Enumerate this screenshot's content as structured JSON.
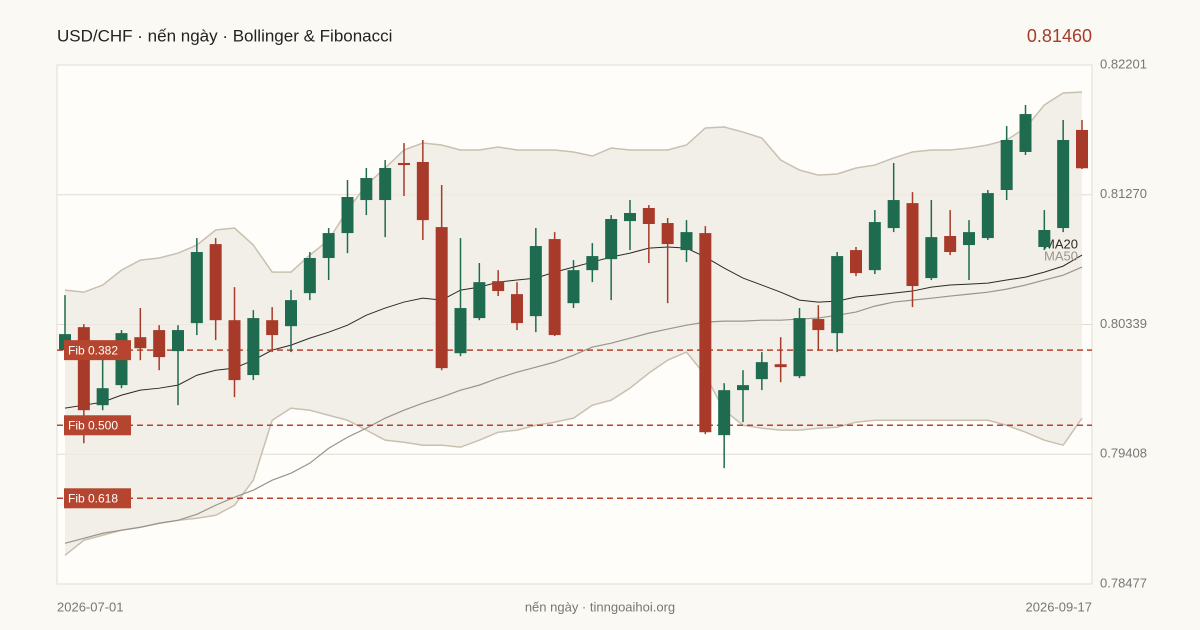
{
  "chart_data": {
    "type": "candlestick",
    "title": "USD/CHF · nến ngày · Bollinger & Fibonacci",
    "last_price": "0.81460",
    "footer": "nến ngày · tinngoaihoi.org",
    "up_color": "#1e6b50",
    "down_color": "#a83a2a",
    "categories": [
      "2026-07-01",
      null,
      null,
      null,
      null,
      null,
      null,
      null,
      null,
      null,
      null,
      null,
      null,
      null,
      null,
      null,
      null,
      null,
      null,
      null,
      null,
      null,
      null,
      null,
      null,
      null,
      null,
      null,
      null,
      null,
      null,
      null,
      null,
      null,
      null,
      null,
      null,
      null,
      null,
      null,
      null,
      null,
      null,
      null,
      null,
      null,
      null,
      null,
      null,
      null,
      null,
      null,
      null,
      null,
      "2026-09-17"
    ],
    "open": [
      0.80155,
      0.8032,
      0.7976,
      0.79904,
      0.80248,
      0.80299,
      0.80148,
      0.80349,
      0.80916,
      0.8037,
      0.79976,
      0.8037,
      0.80327,
      0.80564,
      0.80816,
      0.80995,
      0.81232,
      0.81232,
      0.81498,
      0.81505,
      0.81038,
      0.80133,
      0.80385,
      0.8065,
      0.80557,
      0.80399,
      0.80952,
      0.80492,
      0.80729,
      0.80808,
      0.81081,
      0.81175,
      0.81067,
      0.80873,
      0.80995,
      0.79545,
      0.79868,
      0.79947,
      0.80054,
      0.79968,
      0.80378,
      0.80277,
      0.80873,
      0.80729,
      0.81031,
      0.8121,
      0.80672,
      0.80974,
      0.80909,
      0.80959,
      0.81304,
      0.81577,
      0.80895,
      0.81031,
      0.81735
    ],
    "high": [
      0.8055,
      0.80342,
      0.80098,
      0.80299,
      0.80457,
      0.80334,
      0.80334,
      0.80959,
      0.80959,
      0.80607,
      0.80442,
      0.80464,
      0.80586,
      0.80859,
      0.81031,
      0.81376,
      0.81462,
      0.81519,
      0.81641,
      0.81663,
      0.8134,
      0.80959,
      0.8078,
      0.80729,
      0.80643,
      0.81031,
      0.81002,
      0.80801,
      0.80923,
      0.81124,
      0.81232,
      0.81196,
      0.81103,
      0.81088,
      0.81045,
      0.79918,
      0.80011,
      0.80141,
      0.80248,
      0.80457,
      0.80478,
      0.80859,
      0.80895,
      0.8116,
      0.81498,
      0.81289,
      0.81232,
      0.8116,
      0.81088,
      0.81304,
      0.81763,
      0.81914,
      0.8116,
      0.81806,
      0.81806
    ],
    "low": [
      0.80098,
      0.79487,
      0.79724,
      0.79882,
      0.80083,
      0.80011,
      0.7976,
      0.80263,
      0.80227,
      0.79818,
      0.7994,
      0.80141,
      0.80141,
      0.80514,
      0.80658,
      0.80851,
      0.81124,
      0.80966,
      0.81261,
      0.80945,
      0.80011,
      0.80112,
      0.8037,
      0.80543,
      0.80299,
      0.80284,
      0.80256,
      0.80457,
      0.80643,
      0.80514,
      0.80873,
      0.8078,
      0.80492,
      0.80787,
      0.79552,
      0.79308,
      0.79638,
      0.79868,
      0.79925,
      0.79954,
      0.80155,
      0.80141,
      0.80686,
      0.80701,
      0.81002,
      0.80464,
      0.80658,
      0.80837,
      0.80658,
      0.80945,
      0.81232,
      0.81555,
      0.80873,
      0.81002,
      0.81455
    ],
    "close": [
      0.8027,
      0.79724,
      0.79882,
      0.80277,
      0.80169,
      0.80105,
      0.80299,
      0.80859,
      0.8037,
      0.7994,
      0.80385,
      0.80263,
      0.80514,
      0.80816,
      0.80995,
      0.81254,
      0.8139,
      0.81462,
      0.81483,
      0.81088,
      0.80026,
      0.80457,
      0.80643,
      0.80579,
      0.80349,
      0.80902,
      0.80263,
      0.80729,
      0.8083,
      0.81096,
      0.81139,
      0.8106,
      0.80916,
      0.81002,
      0.79566,
      0.79868,
      0.79904,
      0.80069,
      0.80033,
      0.80385,
      0.80299,
      0.8083,
      0.80708,
      0.81074,
      0.81232,
      0.80615,
      0.80966,
      0.80859,
      0.81002,
      0.81282,
      0.81663,
      0.81849,
      0.81017,
      0.81663,
      0.8146
    ],
    "bands": {
      "color": "#efebe3",
      "line_color": "#c9c0b0",
      "upper": [
        0.80586,
        0.80571,
        0.80622,
        0.80729,
        0.80801,
        0.80816,
        0.80851,
        0.80909,
        0.81017,
        0.81031,
        0.80909,
        0.80715,
        0.80715,
        0.80837,
        0.80945,
        0.8116,
        0.8134,
        0.81462,
        0.81591,
        0.81641,
        0.81627,
        0.81591,
        0.81591,
        0.81613,
        0.81591,
        0.81591,
        0.81591,
        0.81577,
        0.81548,
        0.81605,
        0.81591,
        0.81591,
        0.81591,
        0.81627,
        0.81749,
        0.81756,
        0.8172,
        0.81677,
        0.81519,
        0.81447,
        0.81411,
        0.81419,
        0.81462,
        0.81483,
        0.81534,
        0.81577,
        0.81591,
        0.81591,
        0.81605,
        0.81627,
        0.81663,
        0.81749,
        0.81914,
        0.82,
        0.82007
      ],
      "lower": [
        0.78683,
        0.78791,
        0.78827,
        0.78863,
        0.78884,
        0.78913,
        0.78934,
        0.78949,
        0.7897,
        0.79042,
        0.79222,
        0.79652,
        0.79739,
        0.79724,
        0.79688,
        0.79652,
        0.79581,
        0.79509,
        0.79494,
        0.79473,
        0.79473,
        0.79459,
        0.79509,
        0.79566,
        0.79581,
        0.79616,
        0.79638,
        0.79667,
        0.7976,
        0.79796,
        0.79882,
        0.7999,
        0.80083,
        0.80141,
        0.79975,
        0.79724,
        0.79616,
        0.79595,
        0.79581,
        0.79581,
        0.79595,
        0.79602,
        0.79638,
        0.79652,
        0.79652,
        0.79652,
        0.79652,
        0.79652,
        0.79652,
        0.79652,
        0.79616,
        0.79566,
        0.79509,
        0.79473,
        0.79667
      ]
    },
    "series": [
      {
        "name": "MA20",
        "color": "#2d2a26",
        "values": [
          0.79739,
          0.7976,
          0.79782,
          0.79832,
          0.79868,
          0.79882,
          0.79904,
          0.79975,
          0.80011,
          0.80026,
          0.80083,
          0.80155,
          0.80191,
          0.80241,
          0.80284,
          0.80334,
          0.80406,
          0.80457,
          0.805,
          0.80528,
          0.80514,
          0.80586,
          0.80607,
          0.80643,
          0.80658,
          0.80672,
          0.80715,
          0.80751,
          0.80787,
          0.80823,
          0.80851,
          0.80887,
          0.80895,
          0.80887,
          0.80823,
          0.80744,
          0.80672,
          0.80622,
          0.80571,
          0.80514,
          0.805,
          0.80507,
          0.80536,
          0.8055,
          0.80564,
          0.80579,
          0.80607,
          0.80622,
          0.80629,
          0.80636,
          0.80658,
          0.80679,
          0.80715,
          0.80758,
          0.80837
        ]
      },
      {
        "name": "MA50",
        "color": "#9a948a",
        "values": [
          0.78769,
          0.78805,
          0.78841,
          0.78863,
          0.78884,
          0.78913,
          0.78934,
          0.78977,
          0.79042,
          0.791,
          0.7915,
          0.79222,
          0.79272,
          0.79344,
          0.79451,
          0.7953,
          0.79595,
          0.79667,
          0.79724,
          0.79774,
          0.79818,
          0.79868,
          0.79904,
          0.79954,
          0.79997,
          0.80033,
          0.80069,
          0.80119,
          0.80177,
          0.80205,
          0.80241,
          0.80277,
          0.80306,
          0.80334,
          0.80356,
          0.80363,
          0.80363,
          0.8037,
          0.8037,
          0.80378,
          0.80385,
          0.80406,
          0.80428,
          0.80471,
          0.805,
          0.80514,
          0.80528,
          0.80543,
          0.80557,
          0.80571,
          0.80593,
          0.80622,
          0.80658,
          0.80693,
          0.80751
        ]
      }
    ],
    "fib": {
      "color": "#b5452f",
      "levels": [
        {
          "label": "Fib 0.382",
          "value": 0.80155
        },
        {
          "label": "Fib 0.500",
          "value": 0.79616
        },
        {
          "label": "Fib 0.618",
          "value": 0.79092
        }
      ]
    },
    "ylim": [
      0.78477,
      0.82201
    ],
    "yticks": [
      0.78477,
      0.79408,
      0.80339,
      {
        "value": 0.8127,
        "label": "0.81270"
      },
      0.82201
    ],
    "grid": true
  }
}
